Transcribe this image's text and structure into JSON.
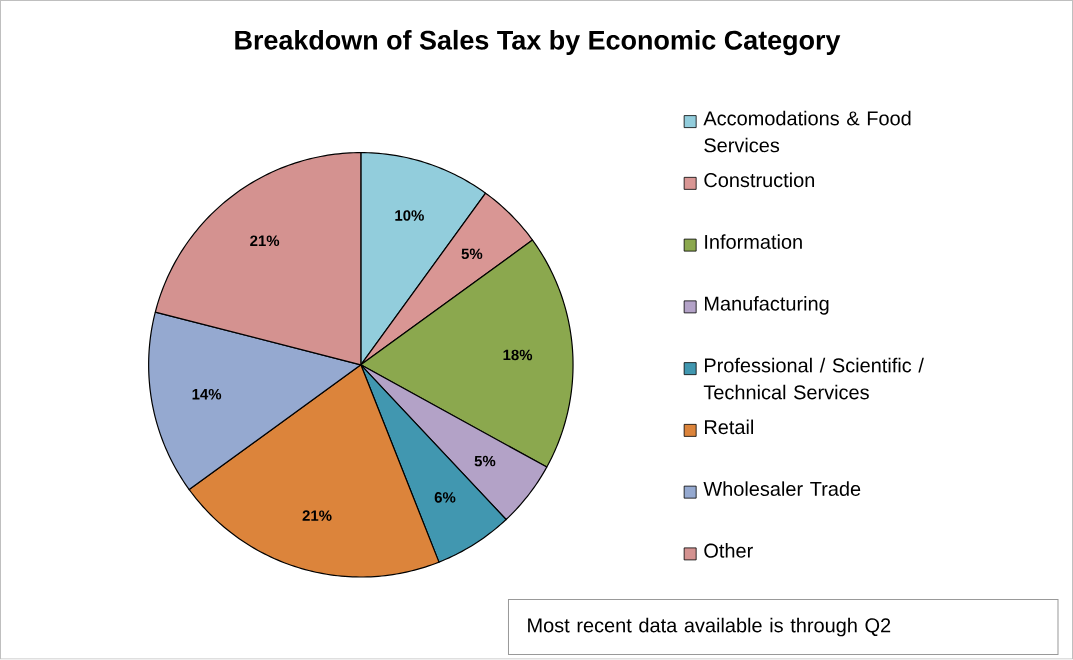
{
  "chart_data": {
    "type": "pie",
    "title": "Breakdown of Sales Tax by Economic Category",
    "categories": [
      "Accomodations & Food Services",
      "Construction",
      "Information",
      "Manufacturing",
      "Professional / Scientific / Technical Services",
      "Retail",
      "Wholesaler Trade",
      "Other"
    ],
    "values": [
      10,
      5,
      18,
      5,
      6,
      21,
      14,
      21
    ],
    "colors": [
      "#92cddc",
      "#d99694",
      "#8ba84e",
      "#b3a2c7",
      "#4197b0",
      "#dc843b",
      "#95a9d0",
      "#d49290"
    ],
    "value_labels": [
      "10%",
      "5%",
      "18%",
      "5%",
      "6%",
      "21%",
      "14%",
      "21%"
    ],
    "legend": "right",
    "annotations": [
      "Most recent data available is through Q2"
    ]
  }
}
